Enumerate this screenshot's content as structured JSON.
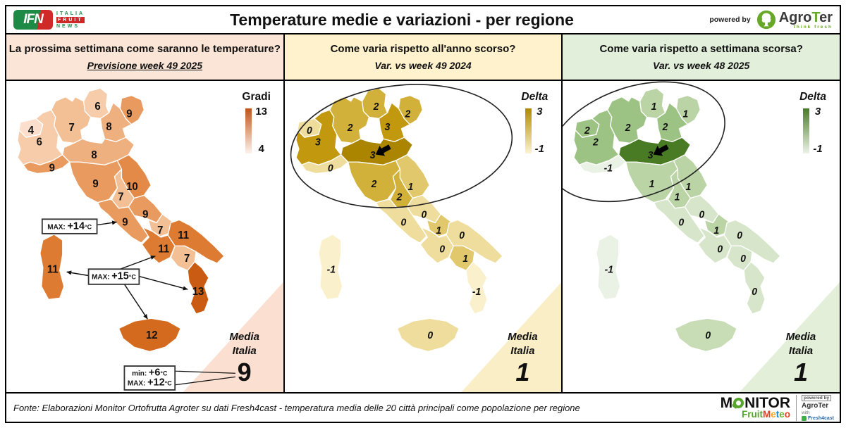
{
  "header": {
    "ifn": {
      "abbr": "IFN",
      "line1": "ITALIA",
      "line2": "FRUIT",
      "line3": "NEWS"
    },
    "title": "Temperature medie e variazioni - per regione",
    "powered_by": "powered by",
    "agroter": {
      "part1": "Agro",
      "part2": "T",
      "part3": "er",
      "tagline": "think fresh"
    }
  },
  "panels": [
    {
      "question": "La prossima settimana come saranno le temperature?",
      "subtitle": "Previsione week 49 2025",
      "header_bg": "#fbe5d6",
      "triangle_bg": "#fbe0d1",
      "legend": {
        "label": "Gradi",
        "max": "13",
        "min": "4",
        "top_color": "#c0541c",
        "bottom_color": "#fdf3ec"
      },
      "media": {
        "line1": "Media",
        "line2": "Italia",
        "value": "9"
      },
      "highlight_ellipse": false,
      "highlight_arrow": false,
      "regions": {
        "vda": {
          "v": "4",
          "fill": "#fbdfcc"
        },
        "piemonte": {
          "v": "6",
          "fill": "#f6ccaa"
        },
        "lombardia": {
          "v": "7",
          "fill": "#f3c096"
        },
        "trentino": {
          "v": "6",
          "fill": "#f6ccaa"
        },
        "veneto": {
          "v": "8",
          "fill": "#efb07f"
        },
        "friuli": {
          "v": "9",
          "fill": "#e99a5f"
        },
        "liguria": {
          "v": "9",
          "fill": "#e99a5f"
        },
        "emilia": {
          "v": "8",
          "fill": "#efb07f"
        },
        "toscana": {
          "v": "9",
          "fill": "#e99a5f"
        },
        "umbria": {
          "v": "7",
          "fill": "#f3c096"
        },
        "marche": {
          "v": "10",
          "fill": "#e38a48"
        },
        "lazio": {
          "v": "9",
          "fill": "#e99a5f"
        },
        "abruzzo": {
          "v": "9",
          "fill": "#e99a5f"
        },
        "molise": {
          "v": "7",
          "fill": "#f3c096"
        },
        "campania": {
          "v": "11",
          "fill": "#dd7b33"
        },
        "puglia": {
          "v": "11",
          "fill": "#dd7b33"
        },
        "basilicata": {
          "v": "7",
          "fill": "#f3c096"
        },
        "calabria": {
          "v": "13",
          "fill": "#c95c12"
        },
        "sicilia": {
          "v": "12",
          "fill": "#d46a1e"
        },
        "sardegna": {
          "v": "11",
          "fill": "#dd7b33"
        }
      },
      "callouts": [
        {
          "lines": [
            {
              "prefix": "MAX: ",
              "value": "+14",
              "unit": "°C"
            }
          ]
        },
        {
          "lines": [
            {
              "prefix": "MAX: ",
              "value": "+15",
              "unit": "°C"
            }
          ]
        },
        {
          "lines": [
            {
              "prefix": "min: ",
              "value": "+6",
              "unit": "°C"
            },
            {
              "prefix": "MAX: ",
              "value": "+12",
              "unit": "°C"
            }
          ]
        }
      ]
    },
    {
      "question": "Come varia rispetto all'anno scorso?",
      "subtitle": "Var. vs week 49 2024",
      "header_bg": "#fff2cc",
      "triangle_bg": "#faeec6",
      "legend": {
        "label": "Delta",
        "max": "3",
        "min": "-1",
        "top_color": "#b18a00",
        "bottom_color": "#fcf3d2"
      },
      "media": {
        "line1": "Media",
        "line2": "Italia",
        "value": "1"
      },
      "highlight_ellipse": true,
      "highlight_arrow": true,
      "regions": {
        "vda": {
          "v": "0",
          "fill": "#eedd9c"
        },
        "piemonte": {
          "v": "3",
          "fill": "#c2980e"
        },
        "lombardia": {
          "v": "2",
          "fill": "#d2b13a"
        },
        "trentino": {
          "v": "2",
          "fill": "#d2b13a"
        },
        "veneto": {
          "v": "3",
          "fill": "#c2980e"
        },
        "friuli": {
          "v": "2",
          "fill": "#d2b13a"
        },
        "liguria": {
          "v": "0",
          "fill": "#eedd9c"
        },
        "emilia": {
          "v": "3",
          "fill": "#ab8500"
        },
        "toscana": {
          "v": "2",
          "fill": "#d2b13a"
        },
        "umbria": {
          "v": "2",
          "fill": "#d2b13a"
        },
        "marche": {
          "v": "1",
          "fill": "#e2c86d"
        },
        "lazio": {
          "v": "0",
          "fill": "#eedd9c"
        },
        "abruzzo": {
          "v": "0",
          "fill": "#eedd9c"
        },
        "molise": {
          "v": "1",
          "fill": "#e2c86d"
        },
        "campania": {
          "v": "0",
          "fill": "#eedd9c"
        },
        "puglia": {
          "v": "0",
          "fill": "#eedd9c"
        },
        "basilicata": {
          "v": "1",
          "fill": "#e2c86d"
        },
        "calabria": {
          "v": "-1",
          "fill": "#faf0cb"
        },
        "sicilia": {
          "v": "0",
          "fill": "#eedd9c"
        },
        "sardegna": {
          "v": "-1",
          "fill": "#faf0cb"
        }
      },
      "callouts": []
    },
    {
      "question": "Come varia rispetto a settimana scorsa?",
      "subtitle": "Var. vs week 48 2025",
      "header_bg": "#e2efda",
      "triangle_bg": "#e3efd9",
      "legend": {
        "label": "Delta",
        "max": "3",
        "min": "-1",
        "top_color": "#4a7b25",
        "bottom_color": "#edf3e9"
      },
      "media": {
        "line1": "Media",
        "line2": "Italia",
        "value": "1"
      },
      "highlight_ellipse": true,
      "highlight_arrow": true,
      "regions": {
        "vda": {
          "v": "2",
          "fill": "#9dc384"
        },
        "piemonte": {
          "v": "2",
          "fill": "#9dc384"
        },
        "lombardia": {
          "v": "2",
          "fill": "#9dc384"
        },
        "trentino": {
          "v": "1",
          "fill": "#bad4a5"
        },
        "veneto": {
          "v": "2",
          "fill": "#9dc384"
        },
        "friuli": {
          "v": "1",
          "fill": "#bad4a5"
        },
        "liguria": {
          "v": "-1",
          "fill": "#eaf1e5"
        },
        "emilia": {
          "v": "3",
          "fill": "#497b24"
        },
        "toscana": {
          "v": "1",
          "fill": "#bad4a5"
        },
        "umbria": {
          "v": "1",
          "fill": "#bad4a5"
        },
        "marche": {
          "v": "1",
          "fill": "#bad4a5"
        },
        "lazio": {
          "v": "0",
          "fill": "#d7e6cb"
        },
        "abruzzo": {
          "v": "0",
          "fill": "#d7e6cb"
        },
        "molise": {
          "v": "1",
          "fill": "#bad4a5"
        },
        "campania": {
          "v": "0",
          "fill": "#d7e6cb"
        },
        "puglia": {
          "v": "0",
          "fill": "#d7e6cb"
        },
        "basilicata": {
          "v": "0",
          "fill": "#d7e6cb"
        },
        "calabria": {
          "v": "0",
          "fill": "#d7e6cb"
        },
        "sicilia": {
          "v": "0",
          "fill": "#c8dcb6"
        },
        "sardegna": {
          "v": "-1",
          "fill": "#eaf1e5"
        }
      },
      "callouts": []
    }
  ],
  "footer": {
    "fonte": "Fonte: Elaborazioni Monitor Ortofrutta Agroter su dati Fresh4cast - temperatura media delle 20 città principali come popolazione per regione",
    "monitor_pre": "M",
    "monitor_post": "NITOR",
    "fruit": "Fruit",
    "fruit_color": "#56a52c",
    "meteo_letters": [
      {
        "ch": "M",
        "color": "#e2401c"
      },
      {
        "ch": "e",
        "color": "#f5a81c"
      },
      {
        "ch": "t",
        "color": "#1c86c8"
      },
      {
        "ch": "e",
        "color": "#6ab42d"
      },
      {
        "ch": "o",
        "color": "#e2401c"
      }
    ],
    "powered_by": "powered by",
    "agroter": "AgroTer",
    "with_label": "with",
    "fresh4cast": "Fresh4cast"
  },
  "chart_data": [
    {
      "type": "choropleth",
      "map": "Italy regions",
      "question": "La prossima settimana come saranno le temperature?",
      "title": "Previsione week 49 2025",
      "unit": "Gradi (°C)",
      "legend_label": "Gradi",
      "legend_range": [
        4,
        13
      ],
      "values": {
        "Valle d'Aosta": 4,
        "Piemonte": 6,
        "Lombardia": 7,
        "Trentino-Alto Adige": 6,
        "Veneto": 8,
        "Friuli-Venezia Giulia": 9,
        "Liguria": 9,
        "Emilia-Romagna": 8,
        "Toscana": 9,
        "Umbria": 7,
        "Marche": 10,
        "Lazio": 9,
        "Abruzzo": 9,
        "Molise": 7,
        "Campania": 11,
        "Puglia": 11,
        "Basilicata": 7,
        "Calabria": 13,
        "Sicilia": 12,
        "Sardegna": 11
      },
      "media_italia": 9,
      "annotations": [
        "MAX: +14°C (Lazio)",
        "MAX: +15°C (Sardegna, Campania, Calabria, Sicilia)",
        "Media Italia min: +6°C",
        "Media Italia MAX: +12°C"
      ]
    },
    {
      "type": "choropleth",
      "map": "Italy regions",
      "question": "Come varia rispetto all'anno scorso?",
      "title": "Var. vs week 49 2024",
      "unit": "Delta (°C)",
      "legend_label": "Delta",
      "legend_range": [
        -1,
        3
      ],
      "values": {
        "Valle d'Aosta": 0,
        "Piemonte": 3,
        "Lombardia": 2,
        "Trentino-Alto Adige": 2,
        "Veneto": 3,
        "Friuli-Venezia Giulia": 2,
        "Liguria": 0,
        "Emilia-Romagna": 3,
        "Toscana": 2,
        "Umbria": 2,
        "Marche": 1,
        "Lazio": 0,
        "Abruzzo": 0,
        "Molise": 1,
        "Campania": 0,
        "Puglia": 0,
        "Basilicata": 1,
        "Calabria": -1,
        "Sicilia": 0,
        "Sardegna": -1
      },
      "media_italia": 1,
      "annotations": [
        "Ellipse highlighting northern Italy",
        "Black arrow on Emilia-Romagna"
      ]
    },
    {
      "type": "choropleth",
      "map": "Italy regions",
      "question": "Come varia rispetto a settimana scorsa?",
      "title": "Var. vs week 48 2025",
      "unit": "Delta (°C)",
      "legend_label": "Delta",
      "legend_range": [
        -1,
        3
      ],
      "values": {
        "Valle d'Aosta": 2,
        "Piemonte": 2,
        "Lombardia": 2,
        "Trentino-Alto Adige": 1,
        "Veneto": 2,
        "Friuli-Venezia Giulia": 1,
        "Liguria": -1,
        "Emilia-Romagna": 3,
        "Toscana": 1,
        "Umbria": 1,
        "Marche": 1,
        "Lazio": 0,
        "Abruzzo": 0,
        "Molise": 1,
        "Campania": 0,
        "Puglia": 0,
        "Basilicata": 0,
        "Calabria": 0,
        "Sicilia": 0,
        "Sardegna": -1
      },
      "media_italia": 1,
      "annotations": [
        "Ellipse highlighting northern Italy",
        "Black arrow on Emilia-Romagna"
      ]
    }
  ]
}
